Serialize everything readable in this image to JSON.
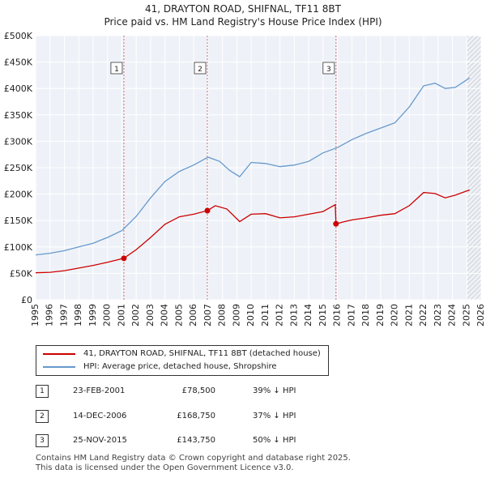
{
  "title_line1": "41, DRAYTON ROAD, SHIFNAL, TF11 8BT",
  "title_line2": "Price paid vs. HM Land Registry's House Price Index (HPI)",
  "colors": {
    "price": "#cc0000",
    "hpi": "#6699cc",
    "grid": "#ffffff",
    "plot_bg": "#eef2f8",
    "vline": "#e06666"
  },
  "legend": {
    "price_label": "41, DRAYTON ROAD, SHIFNAL, TF11 8BT (detached house)",
    "hpi_label": "HPI: Average price, detached house, Shropshire"
  },
  "sales": [
    {
      "num": "1",
      "date": "23-FEB-2001",
      "price": "£78,500",
      "hpi": "39% ↓ HPI"
    },
    {
      "num": "2",
      "date": "14-DEC-2006",
      "price": "£168,750",
      "hpi": "37% ↓ HPI"
    },
    {
      "num": "3",
      "date": "25-NOV-2015",
      "price": "£143,750",
      "hpi": "50% ↓ HPI"
    }
  ],
  "footer_line1": "Contains HM Land Registry data © Crown copyright and database right 2025.",
  "footer_line2": "This data is licensed under the Open Government Licence v3.0.",
  "chart_data": {
    "type": "line",
    "title": "Price paid vs. HM Land Registry's House Price Index (HPI)",
    "xlim": [
      1995,
      2026
    ],
    "ylim": [
      0,
      500000
    ],
    "x_ticks": [
      1995,
      1996,
      1997,
      1998,
      1999,
      2000,
      2001,
      2002,
      2003,
      2004,
      2005,
      2006,
      2007,
      2008,
      2009,
      2010,
      2011,
      2012,
      2013,
      2014,
      2015,
      2016,
      2017,
      2018,
      2019,
      2020,
      2021,
      2022,
      2023,
      2024,
      2025,
      2026
    ],
    "y_ticks": [
      0,
      50000,
      100000,
      150000,
      200000,
      250000,
      300000,
      350000,
      400000,
      450000,
      500000
    ],
    "y_tick_labels": [
      "£0",
      "£50K",
      "£100K",
      "£150K",
      "£200K",
      "£250K",
      "£300K",
      "£350K",
      "£400K",
      "£450K",
      "£500K"
    ],
    "hatch_from": 2025.0,
    "series": [
      {
        "name": "HPI: Average price, detached house, Shropshire",
        "x": [
          1995,
          1996,
          1997,
          1998,
          1999,
          2000,
          2001,
          2002,
          2003,
          2004,
          2005,
          2006,
          2007,
          2007.8,
          2008.5,
          2009.2,
          2010,
          2011,
          2012,
          2013,
          2014,
          2015,
          2016,
          2017,
          2018,
          2019,
          2020,
          2021,
          2022,
          2022.8,
          2023.5,
          2024.2,
          2025.2
        ],
        "values": [
          85000,
          88000,
          93000,
          100000,
          107000,
          118000,
          131000,
          158000,
          193000,
          224000,
          243000,
          255000,
          270000,
          262000,
          245000,
          233000,
          260000,
          258000,
          252000,
          255000,
          262000,
          278000,
          288000,
          303000,
          315000,
          325000,
          335000,
          365000,
          405000,
          410000,
          400000,
          402000,
          420000
        ]
      },
      {
        "name": "41, DRAYTON ROAD, SHIFNAL, TF11 8BT (detached house)",
        "x": [
          1995,
          1996,
          1997,
          1998,
          1999,
          2000,
          2001.14,
          2002,
          2003,
          2004,
          2005,
          2006,
          2006.95,
          2007.5,
          2008.3,
          2009.2,
          2010,
          2011,
          2012,
          2013,
          2014,
          2015,
          2015.85,
          2015.9,
          2016.5,
          2017,
          2018,
          2019,
          2020,
          2021,
          2022,
          2022.8,
          2023.5,
          2024.2,
          2025.2
        ],
        "values": [
          51000,
          52000,
          55000,
          60000,
          65000,
          71000,
          78500,
          95000,
          118000,
          143000,
          157000,
          162000,
          168750,
          178000,
          172000,
          148000,
          162000,
          163000,
          155000,
          157000,
          162000,
          167000,
          180000,
          143750,
          148000,
          151000,
          155000,
          160000,
          163000,
          178000,
          203000,
          201000,
          193000,
          198000,
          208000
        ]
      }
    ],
    "sale_points": [
      {
        "label": "1",
        "x": 2001.14,
        "y": 78500
      },
      {
        "label": "2",
        "x": 2006.95,
        "y": 168750
      },
      {
        "label": "3",
        "x": 2015.9,
        "y": 143750
      }
    ]
  }
}
